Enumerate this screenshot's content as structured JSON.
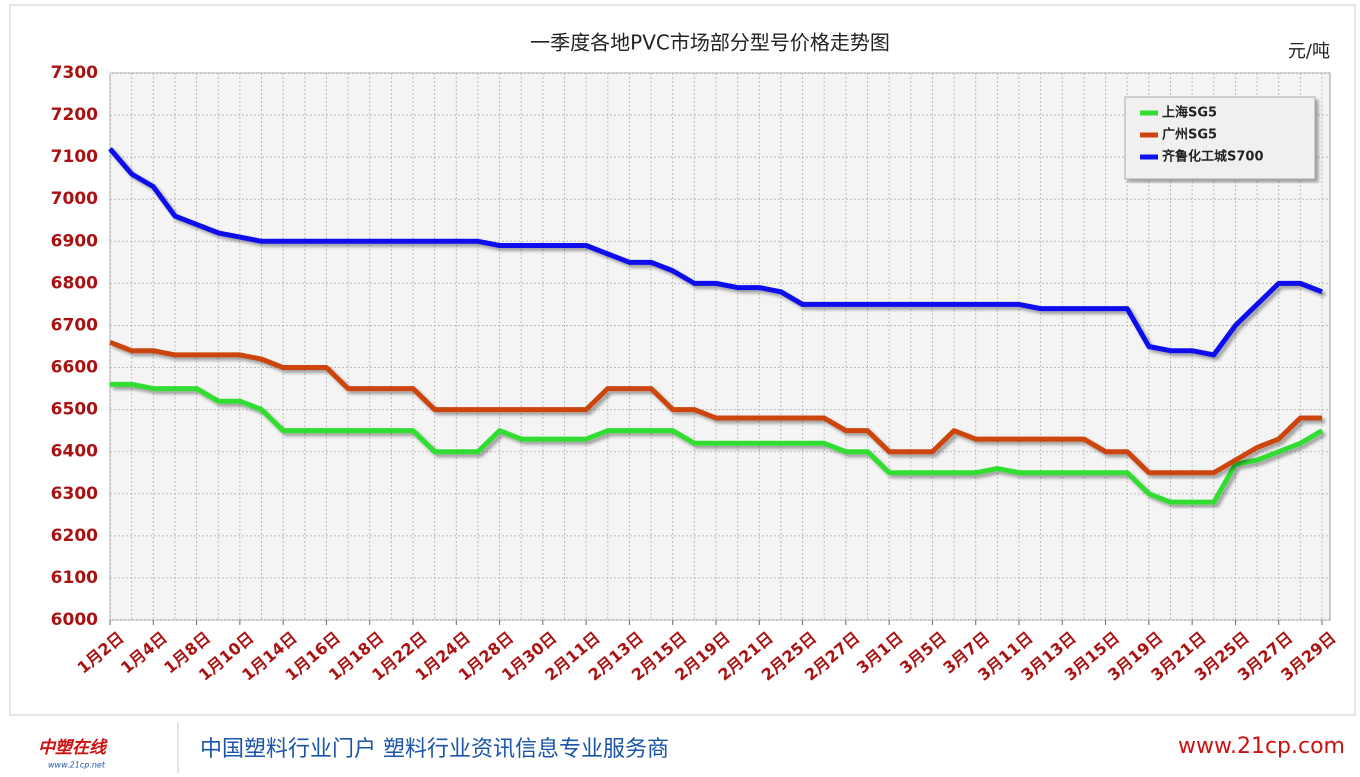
{
  "chart_data": {
    "type": "line",
    "title": "一季度各地PVC市场部分型号价格走势图",
    "unit": "元/吨",
    "categories": [
      "1月2日",
      null,
      "1月4日",
      null,
      "1月8日",
      null,
      "1月10日",
      null,
      "1月14日",
      null,
      "1月16日",
      null,
      "1月18日",
      null,
      "1月22日",
      null,
      "1月24日",
      null,
      "1月28日",
      null,
      "1月30日",
      null,
      "2月11日",
      null,
      "2月13日",
      null,
      "2月15日",
      null,
      "2月19日",
      null,
      "2月21日",
      null,
      "2月25日",
      null,
      "2月27日",
      null,
      "3月1日",
      null,
      "3月5日",
      null,
      "3月7日",
      null,
      "3月11日",
      null,
      "3月13日",
      null,
      "3月15日",
      null,
      "3月19日",
      null,
      "3月21日",
      null,
      "3月25日",
      null,
      "3月27日",
      null,
      "3月29日"
    ],
    "series": [
      {
        "name": "上海SG5",
        "color": "#33dd33",
        "values": [
          6560,
          6560,
          6550,
          6550,
          6550,
          6520,
          6520,
          6500,
          6450,
          6450,
          6450,
          6450,
          6450,
          6450,
          6450,
          6400,
          6400,
          6400,
          6450,
          6430,
          6430,
          6430,
          6430,
          6450,
          6450,
          6450,
          6450,
          6420,
          6420,
          6420,
          6420,
          6420,
          6420,
          6420,
          6400,
          6400,
          6350,
          6350,
          6350,
          6350,
          6350,
          6360,
          6350,
          6350,
          6350,
          6350,
          6350,
          6350,
          6300,
          6280,
          6280,
          6280,
          6370,
          6380,
          6400,
          6420,
          6450
        ]
      },
      {
        "name": "广州SG5",
        "color": "#cc4411",
        "values": [
          6660,
          6640,
          6640,
          6630,
          6630,
          6630,
          6630,
          6620,
          6600,
          6600,
          6600,
          6550,
          6550,
          6550,
          6550,
          6500,
          6500,
          6500,
          6500,
          6500,
          6500,
          6500,
          6500,
          6550,
          6550,
          6550,
          6500,
          6500,
          6480,
          6480,
          6480,
          6480,
          6480,
          6480,
          6450,
          6450,
          6400,
          6400,
          6400,
          6450,
          6430,
          6430,
          6430,
          6430,
          6430,
          6430,
          6400,
          6400,
          6350,
          6350,
          6350,
          6350,
          6380,
          6410,
          6430,
          6480,
          6480
        ]
      },
      {
        "name": "齐鲁化工城S700",
        "color": "#1111ee",
        "values": [
          7120,
          7060,
          7030,
          6960,
          6940,
          6920,
          6910,
          6900,
          6900,
          6900,
          6900,
          6900,
          6900,
          6900,
          6900,
          6900,
          6900,
          6900,
          6890,
          6890,
          6890,
          6890,
          6890,
          6870,
          6850,
          6850,
          6830,
          6800,
          6800,
          6790,
          6790,
          6780,
          6750,
          6750,
          6750,
          6750,
          6750,
          6750,
          6750,
          6750,
          6750,
          6750,
          6750,
          6740,
          6740,
          6740,
          6740,
          6740,
          6650,
          6640,
          6640,
          6630,
          6700,
          6750,
          6800,
          6800,
          6780
        ]
      }
    ],
    "ylim": [
      6000,
      7300
    ],
    "yticks": [
      6000,
      6100,
      6200,
      6300,
      6400,
      6500,
      6600,
      6700,
      6800,
      6900,
      7000,
      7100,
      7200,
      7300
    ],
    "grid": true,
    "legend": "top-right"
  },
  "footer": {
    "logo": "中塑在线",
    "logo_url": "www.21cp.net",
    "slogan": "中国塑料行业门户 塑料行业资讯信息专业服务商",
    "site": "www.21cp.com"
  }
}
